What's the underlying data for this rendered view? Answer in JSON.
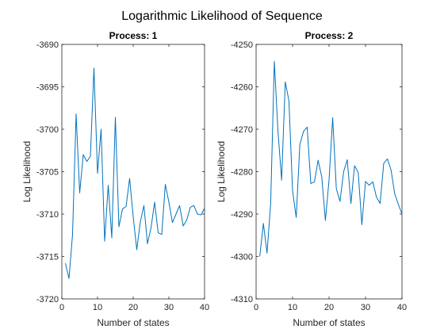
{
  "figure": {
    "title": "Logarithmic Likelihood of Sequence"
  },
  "chart_data": [
    {
      "type": "line",
      "title": "Process: 1",
      "xlabel": "Number of states",
      "ylabel": "Log Likelihood",
      "xlim": [
        0,
        40
      ],
      "ylim": [
        -3720,
        -3690
      ],
      "xticks": [
        0,
        10,
        20,
        30,
        40
      ],
      "yticks": [
        -3720,
        -3715,
        -3710,
        -3705,
        -3700,
        -3695,
        -3690
      ],
      "grid": false,
      "color": "#0072BD",
      "x": [
        1,
        2,
        3,
        4,
        5,
        6,
        7,
        8,
        9,
        10,
        11,
        12,
        13,
        14,
        15,
        16,
        17,
        18,
        19,
        20,
        21,
        22,
        23,
        24,
        25,
        26,
        27,
        28,
        29,
        30,
        31,
        32,
        33,
        34,
        35,
        36,
        37,
        38,
        39,
        40
      ],
      "y": [
        -3715.8,
        -3717.6,
        -3712.4,
        -3698.2,
        -3707.5,
        -3703.0,
        -3703.8,
        -3703.2,
        -3692.8,
        -3705.2,
        -3700.0,
        -3713.2,
        -3706.6,
        -3712.8,
        -3698.6,
        -3711.5,
        -3709.4,
        -3709.1,
        -3705.8,
        -3710.3,
        -3714.2,
        -3710.9,
        -3709.0,
        -3713.5,
        -3711.6,
        -3708.6,
        -3712.2,
        -3712.4,
        -3706.5,
        -3708.6,
        -3711.0,
        -3710.0,
        -3709.0,
        -3711.4,
        -3710.7,
        -3709.2,
        -3709.0,
        -3710.0,
        -3710.1,
        -3709.3
      ]
    },
    {
      "type": "line",
      "title": "Process: 2",
      "xlabel": "Number of states",
      "ylabel": "Log Likelihood",
      "xlim": [
        0,
        40
      ],
      "ylim": [
        -4310,
        -4250
      ],
      "xticks": [
        0,
        10,
        20,
        30,
        40
      ],
      "yticks": [
        -4310,
        -4300,
        -4290,
        -4280,
        -4270,
        -4260,
        -4250
      ],
      "grid": false,
      "color": "#0072BD",
      "x": [
        1,
        2,
        3,
        4,
        5,
        6,
        7,
        8,
        9,
        10,
        11,
        12,
        13,
        14,
        15,
        16,
        17,
        18,
        19,
        20,
        21,
        22,
        23,
        24,
        25,
        26,
        27,
        28,
        29,
        30,
        31,
        32,
        33,
        34,
        35,
        36,
        37,
        38,
        39,
        40
      ],
      "y": [
        -4300.0,
        -4292.2,
        -4299.2,
        -4287.5,
        -4254.0,
        -4270.5,
        -4282.0,
        -4258.8,
        -4263.3,
        -4284.5,
        -4290.8,
        -4273.6,
        -4270.5,
        -4269.5,
        -4282.8,
        -4282.4,
        -4277.3,
        -4281.2,
        -4291.5,
        -4282.0,
        -4267.3,
        -4284.0,
        -4287.0,
        -4280.0,
        -4277.2,
        -4287.5,
        -4278.6,
        -4280.2,
        -4292.5,
        -4282.3,
        -4283.2,
        -4282.4,
        -4286.0,
        -4287.5,
        -4278.0,
        -4277.0,
        -4279.6,
        -4285.2,
        -4287.7,
        -4290.0
      ]
    }
  ]
}
